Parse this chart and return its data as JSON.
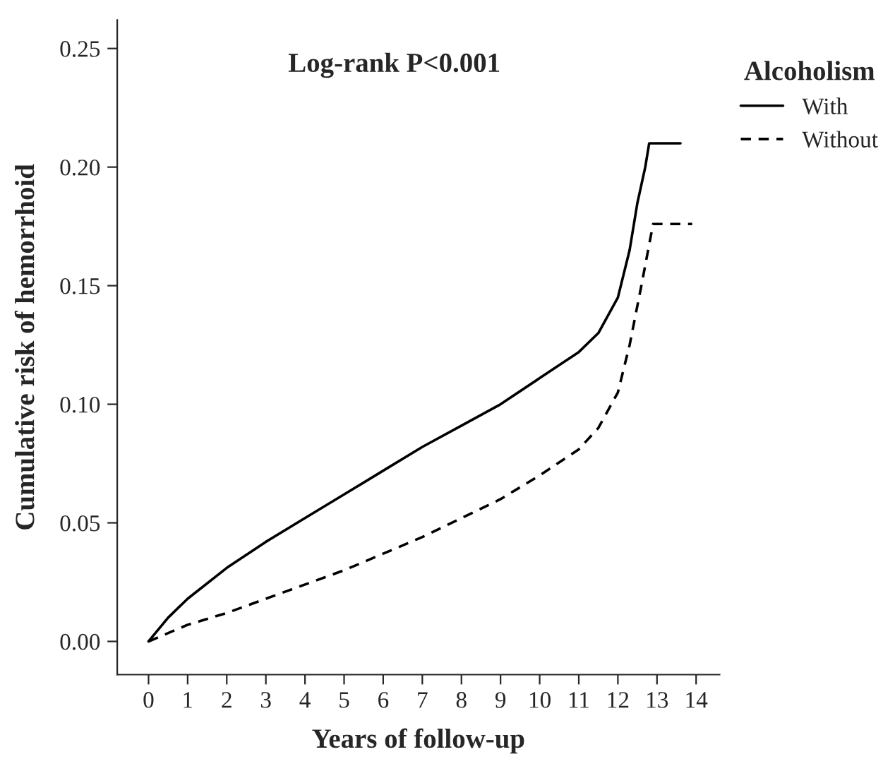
{
  "chart_data": {
    "type": "line",
    "xlabel": "Years of follow-up",
    "ylabel": "Cumulative risk of hemorrhoid",
    "legend_title": "Alcoholism",
    "legend": "top right",
    "annotations": [
      "Log-rank P<0.001"
    ],
    "xlim": [
      -0.8,
      14.6
    ],
    "ylim": [
      -0.014,
      0.262
    ],
    "xticks": [
      0,
      1,
      2,
      3,
      4,
      5,
      6,
      7,
      8,
      9,
      10,
      11,
      12,
      13,
      14
    ],
    "yticks": [
      {
        "value": 0,
        "label": "0.00"
      },
      {
        "value": 0.05,
        "label": "0.05"
      },
      {
        "value": 0.1,
        "label": "0.10"
      },
      {
        "value": 0.15,
        "label": "0.15"
      },
      {
        "value": 0.2,
        "label": "0.20"
      },
      {
        "value": 0.25,
        "label": "0.25"
      }
    ],
    "grid": false,
    "series": [
      {
        "name": "With",
        "color": "#000000",
        "line_style": "solid",
        "x": [
          0,
          0.5,
          1,
          2,
          3,
          4,
          5,
          6,
          7,
          8,
          9,
          10,
          11,
          11.5,
          12,
          12.3,
          12.5,
          12.7,
          12.8,
          13.6
        ],
        "values": [
          0,
          0.01,
          0.018,
          0.031,
          0.042,
          0.052,
          0.062,
          0.072,
          0.082,
          0.091,
          0.1,
          0.111,
          0.122,
          0.13,
          0.145,
          0.165,
          0.185,
          0.2,
          0.21,
          0.21
        ]
      },
      {
        "name": "Without",
        "color": "#000000",
        "line_style": "dashed",
        "x": [
          0,
          1,
          2,
          3,
          4,
          5,
          6,
          7,
          8,
          9,
          10,
          11,
          11.5,
          12,
          12.3,
          12.6,
          12.9,
          13.9
        ],
        "values": [
          0,
          0.007,
          0.012,
          0.018,
          0.024,
          0.03,
          0.037,
          0.044,
          0.052,
          0.06,
          0.07,
          0.081,
          0.09,
          0.105,
          0.125,
          0.15,
          0.176,
          0.176
        ]
      }
    ]
  }
}
